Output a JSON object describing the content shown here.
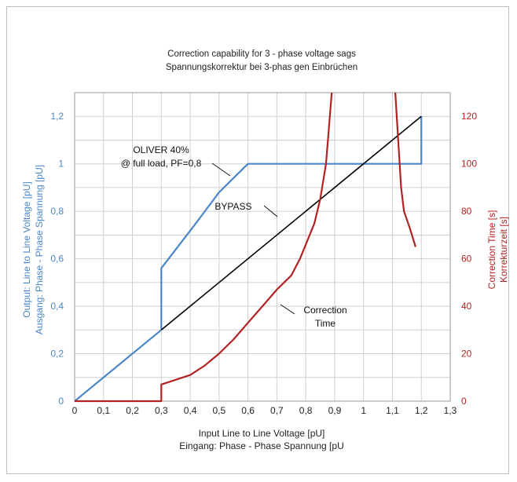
{
  "chart_data": {
    "type": "line",
    "title": "Correction capability for 3 - phase voltage sags",
    "subtitle": "Spannungskorrektur bei 3-phas gen Einbrüchen",
    "xlabel": "Input Line to Line Voltage [pU]",
    "xlabel2": "Eingang: Phase - Phase Spannung [pU",
    "ylabel_left": "Output: Line to Line Voltage [pU]",
    "ylabel_left2": "Ausgang: Phase - Phase Spannung [pU]",
    "ylabel_right": "Correction Time [s]",
    "ylabel_right2": "Korrekturzeit [s]",
    "xlim": [
      0,
      1.3
    ],
    "ylim_left": [
      0,
      1.3
    ],
    "ylim_right": [
      0,
      130
    ],
    "x_ticks": [
      "0",
      "0,1",
      "0,2",
      "0,3",
      "0,4",
      "0,5",
      "0,6",
      "0,7",
      "0,8",
      "0,9",
      "1",
      "1,1",
      "1,2",
      "1,3"
    ],
    "y_left_ticks": [
      "0",
      "0,2",
      "0,4",
      "0,6",
      "0,8",
      "1",
      "1,2"
    ],
    "y_right_ticks": [
      "0",
      "20",
      "40",
      "60",
      "80",
      "100",
      "120"
    ],
    "grid": true,
    "colors": {
      "oliver": "#4a86c8",
      "bypass": "#000000",
      "correction": "#b22222",
      "left_axis": "#4a86c8",
      "right_axis": "#b22222",
      "grid": "#cfcfcf"
    },
    "series": [
      {
        "key": "oliver",
        "axis": "left",
        "x": [
          0,
          0.3,
          0.3,
          0.42,
          0.5,
          0.55,
          0.6,
          0.78,
          1.2,
          1.2
        ],
        "y": [
          0,
          0.3,
          0.56,
          0.75,
          0.88,
          0.94,
          1.0,
          1.0,
          1.0,
          1.2
        ]
      },
      {
        "key": "bypass",
        "axis": "left",
        "x": [
          0.3,
          1.2
        ],
        "y": [
          0.3,
          1.2
        ]
      },
      {
        "key": "correction_low",
        "axis": "right",
        "x": [
          0,
          0.3,
          0.3,
          0.4,
          0.45,
          0.5,
          0.55,
          0.6,
          0.65,
          0.7,
          0.75,
          0.78,
          0.8,
          0.83,
          0.85,
          0.87,
          0.88,
          0.89
        ],
        "y": [
          0,
          0,
          7,
          11,
          15,
          20,
          26,
          33,
          40,
          47,
          53,
          60,
          66,
          75,
          85,
          100,
          115,
          130
        ]
      },
      {
        "key": "correction_high",
        "axis": "right",
        "x": [
          1.11,
          1.12,
          1.13,
          1.14,
          1.16,
          1.18
        ],
        "y": [
          130,
          110,
          90,
          80,
          73,
          65
        ]
      }
    ],
    "annotations": [
      {
        "key": "oliver",
        "lines": [
          "OLIVER 40%",
          "@ full load, PF=0,8"
        ],
        "x": 0.54,
        "y": 0.935
      },
      {
        "key": "bypass",
        "lines": [
          "BYPASS"
        ],
        "x": 0.83,
        "y": 0.73
      },
      {
        "key": "correction",
        "lines": [
          "Correction",
          "Time"
        ],
        "x": 0.7,
        "y": 0.44
      }
    ]
  }
}
